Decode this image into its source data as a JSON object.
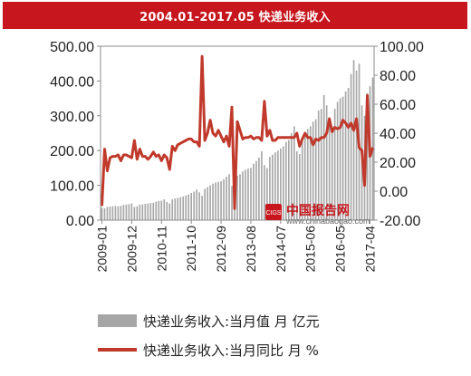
{
  "title": "2004.01-2017.05 快递业务收入",
  "watermark": {
    "badge": "CIGS",
    "name": "中国报告网",
    "url": "www.chinabaogao.com"
  },
  "legend": {
    "bar_label": "快递业务收入:当月值  月 亿元",
    "line_label": "快递业务收入:当月同比  月 %"
  },
  "colors": {
    "bar": "#a6a6a6",
    "line": "#c0392b",
    "title_bg": "#c7161d"
  },
  "chart_data": {
    "type": "bar+line",
    "x_tick_labels": [
      "2009-01",
      "2009-12",
      "2010-11",
      "2011-10",
      "2012-09",
      "2013-08",
      "2014-07",
      "2015-06",
      "2016-05",
      "2017-04"
    ],
    "x": [
      "2009-01",
      "2009-02",
      "2009-03",
      "2009-04",
      "2009-05",
      "2009-06",
      "2009-07",
      "2009-08",
      "2009-09",
      "2009-10",
      "2009-11",
      "2009-12",
      "2010-01",
      "2010-02",
      "2010-03",
      "2010-04",
      "2010-05",
      "2010-06",
      "2010-07",
      "2010-08",
      "2010-09",
      "2010-10",
      "2010-11",
      "2010-12",
      "2011-01",
      "2011-02",
      "2011-03",
      "2011-04",
      "2011-05",
      "2011-06",
      "2011-07",
      "2011-08",
      "2011-09",
      "2011-10",
      "2011-11",
      "2011-12",
      "2012-01",
      "2012-02",
      "2012-03",
      "2012-04",
      "2012-05",
      "2012-06",
      "2012-07",
      "2012-08",
      "2012-09",
      "2012-10",
      "2012-11",
      "2012-12",
      "2013-01",
      "2013-02",
      "2013-03",
      "2013-04",
      "2013-05",
      "2013-06",
      "2013-07",
      "2013-08",
      "2013-09",
      "2013-10",
      "2013-11",
      "2013-12",
      "2014-01",
      "2014-02",
      "2014-03",
      "2014-04",
      "2014-05",
      "2014-06",
      "2014-07",
      "2014-08",
      "2014-09",
      "2014-10",
      "2014-11",
      "2014-12",
      "2015-01",
      "2015-02",
      "2015-03",
      "2015-04",
      "2015-05",
      "2015-06",
      "2015-07",
      "2015-08",
      "2015-09",
      "2015-10",
      "2015-11",
      "2015-12",
      "2016-01",
      "2016-02",
      "2016-03",
      "2016-04",
      "2016-05",
      "2016-06",
      "2016-07",
      "2016-08",
      "2016-09",
      "2016-10",
      "2016-11",
      "2016-12",
      "2017-01",
      "2017-02",
      "2017-03",
      "2017-04",
      "2017-05"
    ],
    "left_axis": {
      "ylim": [
        0,
        500
      ],
      "ticks": [
        "0.00",
        "100.00",
        "200.00",
        "300.00",
        "400.00",
        "500.00"
      ]
    },
    "right_axis": {
      "ylim": [
        -20,
        100
      ],
      "ticks": [
        "-20.00",
        "0.00",
        "20.00",
        "40.00",
        "60.00",
        "80.00",
        "100.00"
      ]
    },
    "series": [
      {
        "name": "快递业务收入:当月值  月 亿元",
        "type": "bar",
        "axis": "left",
        "values": [
          36,
          34,
          38,
          39,
          40,
          41,
          40,
          41,
          44,
          45,
          46,
          48,
          38,
          40,
          45,
          45,
          47,
          48,
          49,
          50,
          53,
          55,
          56,
          60,
          52,
          48,
          60,
          62,
          64,
          66,
          68,
          71,
          74,
          78,
          82,
          88,
          80,
          70,
          90,
          95,
          100,
          105,
          108,
          110,
          112,
          118,
          125,
          132,
          98,
          110,
          128,
          132,
          140,
          145,
          148,
          150,
          162,
          170,
          180,
          198,
          158,
          150,
          182,
          188,
          195,
          200,
          206,
          212,
          225,
          230,
          250,
          270,
          198,
          190,
          235,
          248,
          262,
          270,
          283,
          290,
          315,
          320,
          360,
          330,
          285,
          270,
          320,
          340,
          350,
          355,
          370,
          380,
          420,
          460,
          430,
          450,
          330,
          300,
          365,
          385,
          410
        ]
      },
      {
        "name": "快递业务收入:当月同比  月 %",
        "type": "line",
        "axis": "right",
        "values": [
          -10,
          29,
          14,
          23,
          24,
          24,
          25,
          21,
          25,
          25,
          24,
          23,
          35,
          22,
          29,
          24,
          24,
          22,
          24,
          27,
          24,
          25,
          21,
          25,
          23,
          15,
          31,
          28,
          32,
          33,
          34,
          35,
          36,
          36,
          34,
          34,
          31,
          93,
          35,
          40,
          49,
          40,
          38,
          42,
          38,
          34,
          38,
          31,
          58,
          -12,
          48,
          42,
          36,
          37,
          37,
          38,
          36,
          37,
          37,
          35,
          62,
          38,
          42,
          35,
          35,
          37,
          37,
          37,
          37,
          37,
          37,
          37,
          40,
          31,
          36,
          40,
          37,
          37,
          32,
          36,
          35,
          37,
          37,
          40,
          50,
          41,
          44,
          43,
          44,
          49,
          47,
          44,
          47,
          42,
          50,
          30,
          28,
          4,
          66,
          24,
          30
        ]
      }
    ]
  }
}
